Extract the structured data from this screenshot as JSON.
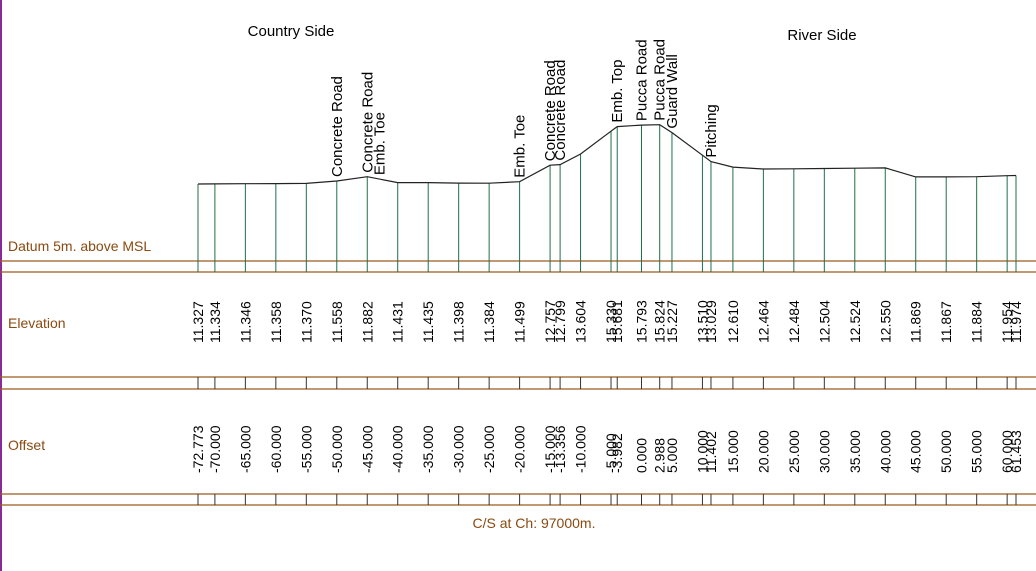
{
  "labels": {
    "country_side": "Country Side",
    "river_side": "River Side",
    "datum": "Datum 5m. above MSL",
    "elevation": "Elevation",
    "offset": "Offset",
    "caption": "C/S at Ch: 97000m."
  },
  "colors": {
    "brown": "#9a5a1c",
    "green": "#1f6f4a",
    "profile": "#222222",
    "purple": "#8a2a9a",
    "label_brown": "#8a4a10"
  },
  "chart_data": {
    "type": "line",
    "title": "",
    "xlabel": "Offset",
    "ylabel": "Elevation",
    "datum": "Datum 5m. above MSL",
    "xlim": [
      -72.773,
      61.453
    ],
    "points": [
      {
        "offset": "-72.773",
        "elevation": "11.327",
        "x": -72.773,
        "y": 11.327
      },
      {
        "offset": "-70.000",
        "elevation": "11.334",
        "x": -70.0,
        "y": 11.334
      },
      {
        "offset": "-65.000",
        "elevation": "11.346",
        "x": -65.0,
        "y": 11.346
      },
      {
        "offset": "-60.000",
        "elevation": "11.358",
        "x": -60.0,
        "y": 11.358
      },
      {
        "offset": "-55.000",
        "elevation": "11.370",
        "x": -55.0,
        "y": 11.37
      },
      {
        "offset": "-50.000",
        "elevation": "11.558",
        "x": -50.0,
        "y": 11.558
      },
      {
        "offset": "-45.000",
        "elevation": "11.882",
        "x": -45.0,
        "y": 11.882
      },
      {
        "offset": "-40.000",
        "elevation": "11.431",
        "x": -40.0,
        "y": 11.431
      },
      {
        "offset": "-35.000",
        "elevation": "11.435",
        "x": -35.0,
        "y": 11.435
      },
      {
        "offset": "-30.000",
        "elevation": "11.398",
        "x": -30.0,
        "y": 11.398
      },
      {
        "offset": "-25.000",
        "elevation": "11.384",
        "x": -25.0,
        "y": 11.384
      },
      {
        "offset": "-20.000",
        "elevation": "11.499",
        "x": -20.0,
        "y": 11.499
      },
      {
        "offset": "-15.000",
        "elevation": "12.757",
        "x": -15.0,
        "y": 12.757
      },
      {
        "offset": "-13.356",
        "elevation": "12.799",
        "x": -13.356,
        "y": 12.799
      },
      {
        "offset": "-10.000",
        "elevation": "13.604",
        "x": -10.0,
        "y": 13.604
      },
      {
        "offset": "-5.000",
        "elevation": "15.330",
        "x": -5.0,
        "y": 15.33
      },
      {
        "offset": "-3.982",
        "elevation": "15.681",
        "x": -3.982,
        "y": 15.681
      },
      {
        "offset": "0.000",
        "elevation": "15.793",
        "x": 0.0,
        "y": 15.793
      },
      {
        "offset": "2.988",
        "elevation": "15.824",
        "x": 2.988,
        "y": 15.824
      },
      {
        "offset": "5.000",
        "elevation": "15.227",
        "x": 5.0,
        "y": 15.227
      },
      {
        "offset": "10.000",
        "elevation": "13.510",
        "x": 10.0,
        "y": 13.51
      },
      {
        "offset": "11.402",
        "elevation": "13.029",
        "x": 11.402,
        "y": 13.029
      },
      {
        "offset": "15.000",
        "elevation": "12.610",
        "x": 15.0,
        "y": 12.61
      },
      {
        "offset": "20.000",
        "elevation": "12.464",
        "x": 20.0,
        "y": 12.464
      },
      {
        "offset": "25.000",
        "elevation": "12.484",
        "x": 25.0,
        "y": 12.484
      },
      {
        "offset": "30.000",
        "elevation": "12.504",
        "x": 30.0,
        "y": 12.504
      },
      {
        "offset": "35.000",
        "elevation": "12.524",
        "x": 35.0,
        "y": 12.524
      },
      {
        "offset": "40.000",
        "elevation": "12.550",
        "x": 40.0,
        "y": 12.55
      },
      {
        "offset": "45.000",
        "elevation": "11.869",
        "x": 45.0,
        "y": 11.869
      },
      {
        "offset": "50.000",
        "elevation": "11.867",
        "x": 50.0,
        "y": 11.867
      },
      {
        "offset": "55.000",
        "elevation": "11.884",
        "x": 55.0,
        "y": 11.884
      },
      {
        "offset": "60.000",
        "elevation": "11.954",
        "x": 60.0,
        "y": 11.954
      },
      {
        "offset": "61.453",
        "elevation": "11.974",
        "x": 61.453,
        "y": 11.974
      }
    ],
    "features": [
      {
        "label": "Concrete Road",
        "offset": -50.0
      },
      {
        "label": "Concrete Road",
        "offset": -45.0
      },
      {
        "label": "Emb. Toe",
        "offset": -43.0
      },
      {
        "label": "Emb. Toe",
        "offset": -20.0
      },
      {
        "label": "Concrete Road",
        "offset": -15.0
      },
      {
        "label": "Concrete Road",
        "offset": -13.356
      },
      {
        "label": "Emb. Top",
        "offset": -3.982
      },
      {
        "label": "Pucca Road",
        "offset": 0.0
      },
      {
        "label": "Pucca Road",
        "offset": 2.988
      },
      {
        "label": "Guard Wall",
        "offset": 5.0
      },
      {
        "label": "Pitching",
        "offset": 11.402
      }
    ]
  }
}
